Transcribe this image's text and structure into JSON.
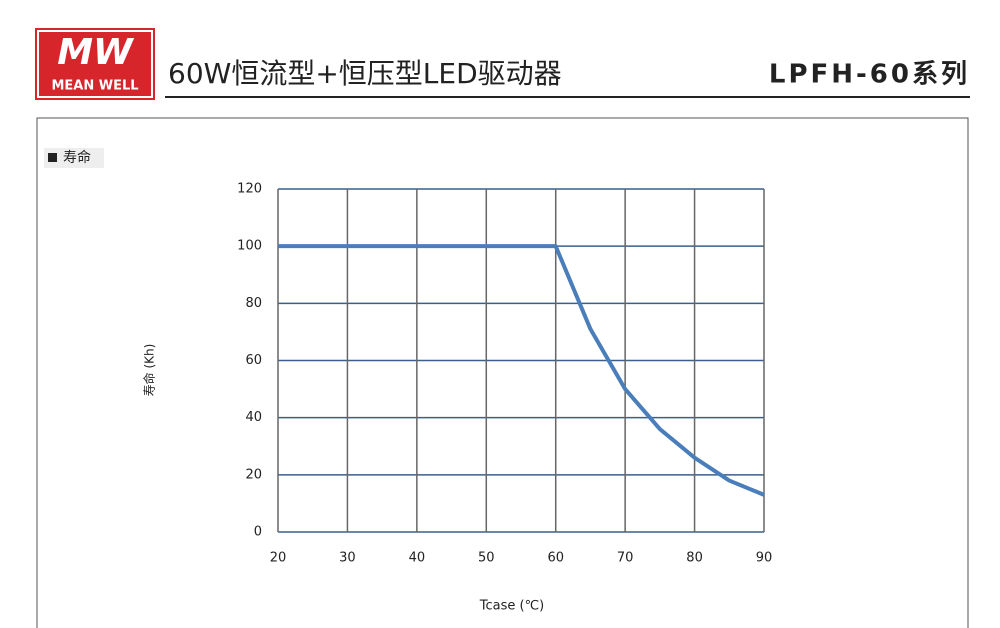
{
  "header": {
    "logo_mark": "MW",
    "logo_text": "MEAN WELL",
    "title": "60W恒流型+恒压型LED驱动器",
    "model": "LPFH-60系列"
  },
  "section": {
    "label": "寿命"
  },
  "chart_data": {
    "type": "line",
    "x_label": "Tcase (℃)",
    "y_label": "寿命 (Kh)",
    "x": [
      20,
      60,
      65,
      70,
      75,
      80,
      85,
      90
    ],
    "values": [
      100,
      100,
      71,
      50,
      36,
      26,
      18,
      13
    ],
    "color": "#4a7ebb",
    "xlim": [
      20,
      90
    ],
    "xticks": [
      20,
      30,
      40,
      50,
      60,
      70,
      80,
      90
    ],
    "ylim": [
      0,
      120
    ],
    "yticks": [
      0,
      20,
      40,
      60,
      80,
      100,
      120
    ],
    "grid": true
  }
}
